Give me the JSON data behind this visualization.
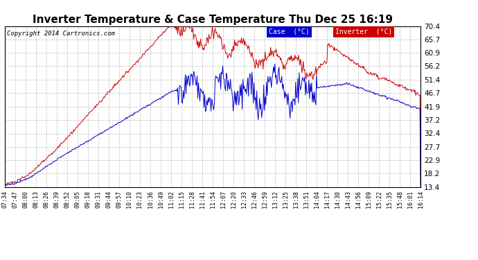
{
  "title": "Inverter Temperature & Case Temperature Thu Dec 25 16:19",
  "copyright": "Copyright 2014 Cartronics.com",
  "legend_case_label": "Case  (°C)",
  "legend_inverter_label": "Inverter  (°C)",
  "yticks": [
    13.4,
    18.2,
    22.9,
    27.7,
    32.4,
    37.2,
    41.9,
    46.7,
    51.4,
    56.2,
    60.9,
    65.7,
    70.4
  ],
  "ylim": [
    13.4,
    70.4
  ],
  "background_color": "#ffffff",
  "plot_bg_color": "#ffffff",
  "grid_color": "#aaaaaa",
  "case_color": "#0000cc",
  "inverter_color": "#cc0000",
  "title_fontsize": 11,
  "copyright_fontsize": 6.5,
  "xtick_fontsize": 6,
  "ytick_fontsize": 7.5,
  "x_labels": [
    "07:34",
    "07:47",
    "08:00",
    "08:13",
    "08:26",
    "08:39",
    "08:52",
    "09:05",
    "09:18",
    "09:31",
    "09:44",
    "09:57",
    "10:10",
    "10:23",
    "10:36",
    "10:49",
    "11:02",
    "11:15",
    "11:28",
    "11:41",
    "11:54",
    "12:07",
    "12:20",
    "12:33",
    "12:46",
    "12:59",
    "13:12",
    "13:25",
    "13:38",
    "13:51",
    "14:04",
    "14:17",
    "14:30",
    "14:43",
    "14:56",
    "15:09",
    "15:22",
    "15:35",
    "15:48",
    "16:01",
    "16:14"
  ]
}
